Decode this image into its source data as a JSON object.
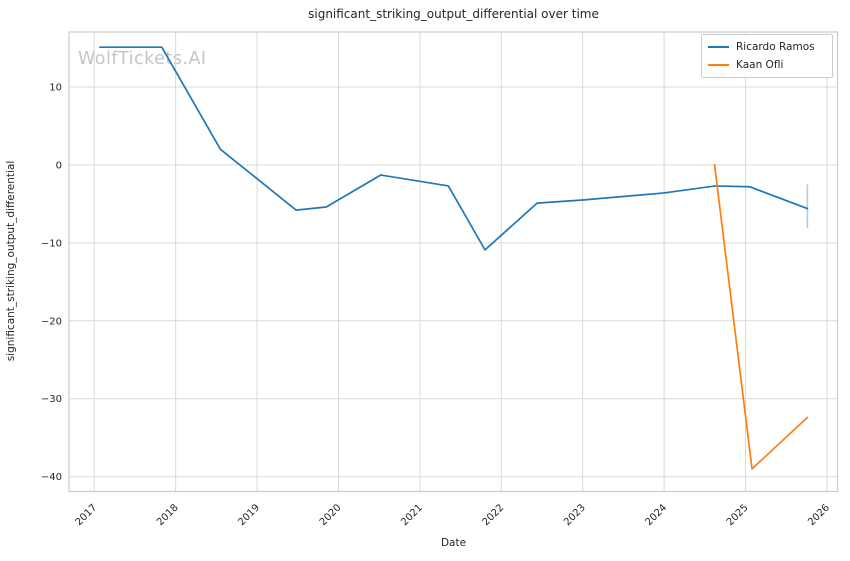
{
  "figure": {
    "title": "significant_striking_output_differential over time",
    "xlabel": "Date",
    "ylabel": "significant_striking_output_differential",
    "watermark": "WolfTickets.AI"
  },
  "colors": {
    "series_blue": "#1f77b4",
    "series_orange": "#ff7f0e",
    "error_bar": "#aecde3",
    "grid": "#d9d9d9",
    "axes_border": "#cccccc",
    "text": "#262626",
    "watermark": "#c5c5c5"
  },
  "chart_data": {
    "type": "line",
    "title": "significant_striking_output_differential over time",
    "xlabel": "Date",
    "ylabel": "significant_striking_output_differential",
    "grid": true,
    "legend_position": "upper right",
    "xlim": [
      2016.69,
      2026.13
    ],
    "ylim": [
      -41.9,
      17.05
    ],
    "x_ticks": [
      2017,
      2018,
      2019,
      2020,
      2021,
      2022,
      2023,
      2024,
      2025,
      2026
    ],
    "y_ticks": [
      10,
      0,
      -10,
      -20,
      -30,
      -40
    ],
    "series": [
      {
        "name": "Ricardo Ramos",
        "color": "#1f77b4",
        "x": [
          2017.07,
          2017.83,
          2018.55,
          2019.48,
          2019.85,
          2020.52,
          2021.35,
          2021.8,
          2022.44,
          2023.0,
          2024.0,
          2024.63,
          2025.05,
          2025.76
        ],
        "y": [
          15.1,
          15.1,
          2.0,
          -5.8,
          -5.4,
          -1.3,
          -2.7,
          -10.9,
          -4.9,
          -4.5,
          -3.6,
          -2.7,
          -2.8,
          -5.6
        ],
        "error_bars": [
          {
            "x": 2025.76,
            "y_low": -8.1,
            "y_high": -2.5,
            "color": "#aecde3"
          }
        ]
      },
      {
        "name": "Kaan Ofli",
        "color": "#ff7f0e",
        "x": [
          2024.62,
          2025.08,
          2025.76
        ],
        "y": [
          0.0,
          -39.0,
          -32.4
        ],
        "error_bars": []
      }
    ]
  }
}
